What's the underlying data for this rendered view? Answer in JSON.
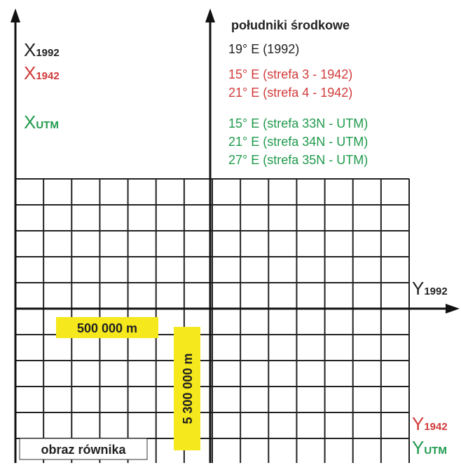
{
  "axes": {
    "x_labels": [
      {
        "main": "X",
        "sub": "1992"
      },
      {
        "main": "X",
        "sub": "1942"
      },
      {
        "main": "X",
        "sub": "UTM"
      }
    ],
    "y_labels": [
      {
        "main": "Y",
        "sub": "1992"
      },
      {
        "main": "Y",
        "sub": "1942"
      },
      {
        "main": "Y",
        "sub": "UTM"
      }
    ]
  },
  "legend": {
    "title": "południki środkowe",
    "lines": [
      "19° E (1992)",
      "15° E (strefa 3 - 1942)",
      "21° E (strefa 4 - 1942)",
      "15° E (strefa 33N - UTM)",
      "21° E (strefa 34N - UTM)",
      "27° E (strefa 35N - UTM)"
    ]
  },
  "boxes": {
    "easting": "500 000 m",
    "northing": "5 300 000 m",
    "equator": "obraz równika"
  }
}
